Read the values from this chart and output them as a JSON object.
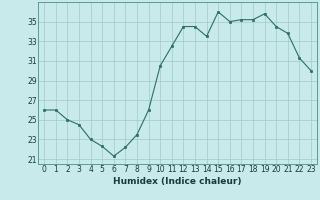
{
  "x": [
    0,
    1,
    2,
    3,
    4,
    5,
    6,
    7,
    8,
    9,
    10,
    11,
    12,
    13,
    14,
    15,
    16,
    17,
    18,
    19,
    20,
    21,
    22,
    23
  ],
  "y": [
    26,
    26,
    25,
    24.5,
    23,
    22.3,
    21.3,
    22.2,
    23.5,
    26,
    30.5,
    32.5,
    34.5,
    34.5,
    33.5,
    36,
    35,
    35.2,
    35.2,
    35.8,
    34.5,
    33.8,
    31.3,
    30
  ],
  "line_color": "#2d6e65",
  "marker_color": "#2d6e65",
  "bg_color": "#c8eaea",
  "grid_color": "#a0c8c8",
  "xlabel": "Humidex (Indice chaleur)",
  "ylim": [
    20.5,
    37
  ],
  "xlim": [
    -0.5,
    23.5
  ],
  "yticks": [
    21,
    23,
    25,
    27,
    29,
    31,
    33,
    35
  ],
  "xticks": [
    0,
    1,
    2,
    3,
    4,
    5,
    6,
    7,
    8,
    9,
    10,
    11,
    12,
    13,
    14,
    15,
    16,
    17,
    18,
    19,
    20,
    21,
    22,
    23
  ],
  "tick_fontsize": 5.5,
  "xlabel_fontsize": 6.5
}
